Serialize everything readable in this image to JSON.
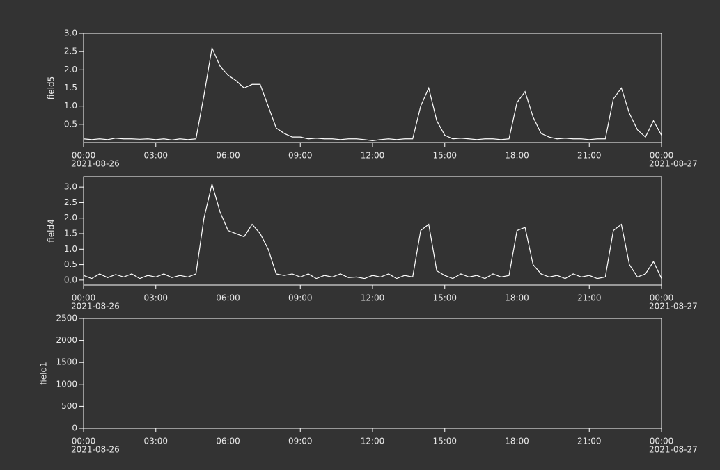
{
  "chart_data": [
    {
      "type": "line",
      "ylabel": "field5",
      "x": [
        "2021-08-26 00:00",
        "2021-08-26 00:20",
        "2021-08-26 00:40",
        "2021-08-26 01:00",
        "2021-08-26 01:20",
        "2021-08-26 01:40",
        "2021-08-26 02:00",
        "2021-08-26 02:20",
        "2021-08-26 02:40",
        "2021-08-26 03:00",
        "2021-08-26 03:20",
        "2021-08-26 03:40",
        "2021-08-26 04:00",
        "2021-08-26 04:20",
        "2021-08-26 04:40",
        "2021-08-26 05:00",
        "2021-08-26 05:20",
        "2021-08-26 05:40",
        "2021-08-26 06:00",
        "2021-08-26 06:20",
        "2021-08-26 06:40",
        "2021-08-26 07:00",
        "2021-08-26 07:20",
        "2021-08-26 07:40",
        "2021-08-26 08:00",
        "2021-08-26 08:20",
        "2021-08-26 08:40",
        "2021-08-26 09:00",
        "2021-08-26 09:20",
        "2021-08-26 09:40",
        "2021-08-26 10:00",
        "2021-08-26 10:20",
        "2021-08-26 10:40",
        "2021-08-26 11:00",
        "2021-08-26 11:20",
        "2021-08-26 11:40",
        "2021-08-26 12:00",
        "2021-08-26 12:20",
        "2021-08-26 12:40",
        "2021-08-26 13:00",
        "2021-08-26 13:20",
        "2021-08-26 13:40",
        "2021-08-26 14:00",
        "2021-08-26 14:20",
        "2021-08-26 14:40",
        "2021-08-26 15:00",
        "2021-08-26 15:20",
        "2021-08-26 15:40",
        "2021-08-26 16:00",
        "2021-08-26 16:20",
        "2021-08-26 16:40",
        "2021-08-26 17:00",
        "2021-08-26 17:20",
        "2021-08-26 17:40",
        "2021-08-26 18:00",
        "2021-08-26 18:20",
        "2021-08-26 18:40",
        "2021-08-26 19:00",
        "2021-08-26 19:20",
        "2021-08-26 19:40",
        "2021-08-26 20:00",
        "2021-08-26 20:20",
        "2021-08-26 20:40",
        "2021-08-26 21:00",
        "2021-08-26 21:20",
        "2021-08-26 21:40",
        "2021-08-26 22:00",
        "2021-08-26 22:20",
        "2021-08-26 22:40",
        "2021-08-26 23:00",
        "2021-08-26 23:20",
        "2021-08-26 23:40",
        "2021-08-27 00:00"
      ],
      "series": [
        {
          "name": "field5",
          "color": "#ffffff",
          "values": [
            0.1,
            0.08,
            0.1,
            0.08,
            0.12,
            0.1,
            0.1,
            0.09,
            0.1,
            0.08,
            0.1,
            0.07,
            0.1,
            0.08,
            0.1,
            1.3,
            2.6,
            2.1,
            1.85,
            1.7,
            1.5,
            1.6,
            1.6,
            1.0,
            0.4,
            0.25,
            0.15,
            0.15,
            0.1,
            0.12,
            0.1,
            0.1,
            0.08,
            0.1,
            0.1,
            0.08,
            0.05,
            0.08,
            0.1,
            0.08,
            0.1,
            0.1,
            1.0,
            1.5,
            0.6,
            0.2,
            0.1,
            0.12,
            0.1,
            0.08,
            0.1,
            0.1,
            0.08,
            0.1,
            1.1,
            1.4,
            0.7,
            0.25,
            0.15,
            0.1,
            0.12,
            0.1,
            0.1,
            0.08,
            0.1,
            0.1,
            1.2,
            1.5,
            0.8,
            0.35,
            0.15,
            0.6,
            0.2
          ]
        }
      ],
      "xlim": [
        "2021-08-26 00:00",
        "2021-08-27 00:00"
      ],
      "xticks": [
        {
          "value": "2021-08-26 00:00",
          "label": "00:00",
          "date_label": "2021-08-26"
        },
        {
          "value": "2021-08-26 03:00",
          "label": "03:00"
        },
        {
          "value": "2021-08-26 06:00",
          "label": "06:00"
        },
        {
          "value": "2021-08-26 09:00",
          "label": "09:00"
        },
        {
          "value": "2021-08-26 12:00",
          "label": "12:00"
        },
        {
          "value": "2021-08-26 15:00",
          "label": "15:00"
        },
        {
          "value": "2021-08-26 18:00",
          "label": "18:00"
        },
        {
          "value": "2021-08-26 21:00",
          "label": "21:00"
        },
        {
          "value": "2021-08-27 00:00",
          "label": "00:00",
          "date_label": "2021-08-27"
        }
      ],
      "ylim": [
        0,
        3
      ],
      "yticks": [
        0.5,
        {
          "value": 1,
          "label": "1.0"
        },
        1.5,
        {
          "value": 2,
          "label": "2.0"
        },
        2.5,
        {
          "value": 3,
          "label": "3.0"
        }
      ]
    },
    {
      "type": "line",
      "ylabel": "field4",
      "x": [
        "2021-08-26 00:00",
        "2021-08-26 00:20",
        "2021-08-26 00:40",
        "2021-08-26 01:00",
        "2021-08-26 01:20",
        "2021-08-26 01:40",
        "2021-08-26 02:00",
        "2021-08-26 02:20",
        "2021-08-26 02:40",
        "2021-08-26 03:00",
        "2021-08-26 03:20",
        "2021-08-26 03:40",
        "2021-08-26 04:00",
        "2021-08-26 04:20",
        "2021-08-26 04:40",
        "2021-08-26 05:00",
        "2021-08-26 05:20",
        "2021-08-26 05:40",
        "2021-08-26 06:00",
        "2021-08-26 06:20",
        "2021-08-26 06:40",
        "2021-08-26 07:00",
        "2021-08-26 07:20",
        "2021-08-26 07:40",
        "2021-08-26 08:00",
        "2021-08-26 08:20",
        "2021-08-26 08:40",
        "2021-08-26 09:00",
        "2021-08-26 09:20",
        "2021-08-26 09:40",
        "2021-08-26 10:00",
        "2021-08-26 10:20",
        "2021-08-26 10:40",
        "2021-08-26 11:00",
        "2021-08-26 11:20",
        "2021-08-26 11:40",
        "2021-08-26 12:00",
        "2021-08-26 12:20",
        "2021-08-26 12:40",
        "2021-08-26 13:00",
        "2021-08-26 13:20",
        "2021-08-26 13:40",
        "2021-08-26 14:00",
        "2021-08-26 14:20",
        "2021-08-26 14:40",
        "2021-08-26 15:00",
        "2021-08-26 15:20",
        "2021-08-26 15:40",
        "2021-08-26 16:00",
        "2021-08-26 16:20",
        "2021-08-26 16:40",
        "2021-08-26 17:00",
        "2021-08-26 17:20",
        "2021-08-26 17:40",
        "2021-08-26 18:00",
        "2021-08-26 18:20",
        "2021-08-26 18:40",
        "2021-08-26 19:00",
        "2021-08-26 19:20",
        "2021-08-26 19:40",
        "2021-08-26 20:00",
        "2021-08-26 20:20",
        "2021-08-26 20:40",
        "2021-08-26 21:00",
        "2021-08-26 21:20",
        "2021-08-26 21:40",
        "2021-08-26 22:00",
        "2021-08-26 22:20",
        "2021-08-26 22:40",
        "2021-08-26 23:00",
        "2021-08-26 23:20",
        "2021-08-26 23:40",
        "2021-08-27 00:00"
      ],
      "series": [
        {
          "name": "field4",
          "color": "#ffffff",
          "values": [
            0.15,
            0.05,
            0.2,
            0.08,
            0.18,
            0.1,
            0.2,
            0.05,
            0.15,
            0.1,
            0.2,
            0.08,
            0.15,
            0.1,
            0.2,
            2.0,
            3.1,
            2.2,
            1.6,
            1.5,
            1.4,
            1.8,
            1.5,
            1.0,
            0.2,
            0.15,
            0.2,
            0.1,
            0.2,
            0.05,
            0.15,
            0.1,
            0.2,
            0.08,
            0.1,
            0.05,
            0.15,
            0.1,
            0.2,
            0.05,
            0.15,
            0.1,
            1.6,
            1.8,
            0.3,
            0.15,
            0.05,
            0.2,
            0.1,
            0.15,
            0.05,
            0.2,
            0.1,
            0.15,
            1.6,
            1.7,
            0.5,
            0.2,
            0.1,
            0.15,
            0.05,
            0.2,
            0.1,
            0.15,
            0.05,
            0.1,
            1.6,
            1.8,
            0.5,
            0.1,
            0.2,
            0.6,
            0.05
          ]
        }
      ],
      "xlim": [
        "2021-08-26 00:00",
        "2021-08-27 00:00"
      ],
      "xticks": [
        {
          "value": "2021-08-26 00:00",
          "label": "00:00",
          "date_label": "2021-08-26"
        },
        {
          "value": "2021-08-26 03:00",
          "label": "03:00"
        },
        {
          "value": "2021-08-26 06:00",
          "label": "06:00"
        },
        {
          "value": "2021-08-26 09:00",
          "label": "09:00"
        },
        {
          "value": "2021-08-26 12:00",
          "label": "12:00"
        },
        {
          "value": "2021-08-26 15:00",
          "label": "15:00"
        },
        {
          "value": "2021-08-26 18:00",
          "label": "18:00"
        },
        {
          "value": "2021-08-26 21:00",
          "label": "21:00"
        },
        {
          "value": "2021-08-27 00:00",
          "label": "00:00",
          "date_label": "2021-08-27"
        }
      ],
      "ylim": [
        -0.16,
        3.34
      ],
      "yticks": [
        {
          "value": 0,
          "label": "0.0"
        },
        0.5,
        {
          "value": 1,
          "label": "1.0"
        },
        1.5,
        {
          "value": 2,
          "label": "2.0"
        },
        2.5,
        {
          "value": 3,
          "label": "3.0"
        }
      ]
    },
    {
      "type": "line",
      "ylabel": "field1",
      "xlim": [
        "2021-08-26 00:00",
        "2021-08-27 00:00"
      ],
      "xticks": [
        {
          "value": "2021-08-26 00:00",
          "label": "00:00",
          "date_label": "2021-08-26"
        },
        {
          "value": "2021-08-26 03:00",
          "label": "03:00"
        },
        {
          "value": "2021-08-26 06:00",
          "label": "06:00"
        },
        {
          "value": "2021-08-26 09:00",
          "label": "09:00"
        },
        {
          "value": "2021-08-26 12:00",
          "label": "12:00"
        },
        {
          "value": "2021-08-26 15:00",
          "label": "15:00"
        },
        {
          "value": "2021-08-26 18:00",
          "label": "18:00"
        },
        {
          "value": "2021-08-26 21:00",
          "label": "21:00"
        },
        {
          "value": "2021-08-27 00:00",
          "label": "00:00",
          "date_label": "2021-08-27"
        }
      ],
      "ylim": [
        0,
        2500
      ],
      "yticks": [
        0,
        500,
        1000,
        1500,
        2000,
        2500
      ]
    }
  ]
}
